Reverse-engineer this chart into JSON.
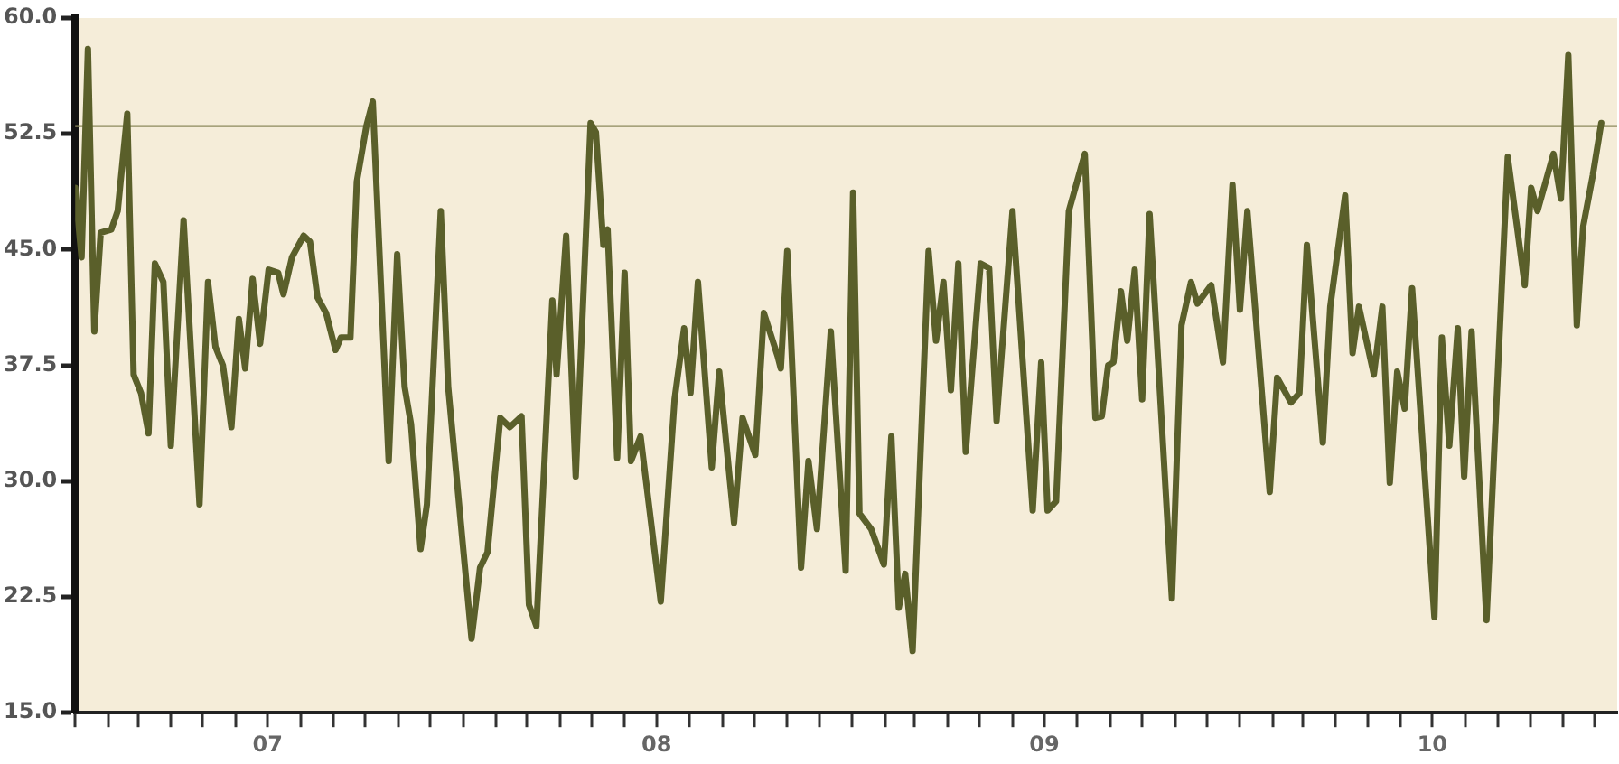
{
  "chart_data": {
    "type": "line",
    "series": [
      {
        "color": "#5a5f2a",
        "x": [
          "2007-01-01",
          "2007-01-07",
          "2007-01-13",
          "2007-01-19",
          "2007-01-25",
          "2007-02-04",
          "2007-02-10",
          "2007-02-19",
          "2007-02-25",
          "2007-03-04",
          "2007-03-11",
          "2007-03-17",
          "2007-03-25",
          "2007-04-01",
          "2007-04-13",
          "2007-04-28",
          "2007-05-06",
          "2007-05-13",
          "2007-05-20",
          "2007-05-28",
          "2007-06-04",
          "2007-06-10",
          "2007-06-17",
          "2007-06-24",
          "2007-07-02",
          "2007-07-11",
          "2007-07-16",
          "2007-07-24",
          "2007-08-04",
          "2007-08-10",
          "2007-08-17",
          "2007-08-25",
          "2007-09-03",
          "2007-09-08",
          "2007-09-17",
          "2007-09-23",
          "2007-10-02",
          "2007-10-08",
          "2007-10-23",
          "2007-10-31",
          "2007-11-07",
          "2007-11-13",
          "2007-11-22",
          "2007-11-28",
          "2007-12-11",
          "2007-12-18",
          "2008-01-09",
          "2008-01-17",
          "2008-01-24",
          "2008-02-05",
          "2008-02-14",
          "2008-02-25",
          "2008-03-03",
          "2008-03-10",
          "2008-03-25",
          "2008-03-29",
          "2008-04-07",
          "2008-04-16",
          "2008-04-30",
          "2008-05-05",
          "2008-05-12",
          "2008-05-16",
          "2008-05-25",
          "2008-06-01",
          "2008-06-07",
          "2008-06-16",
          "2008-07-05",
          "2008-07-18",
          "2008-07-27",
          "2008-08-02",
          "2008-08-09",
          "2008-08-22",
          "2008-08-29",
          "2008-09-12",
          "2008-09-20",
          "2008-10-02",
          "2008-10-10",
          "2008-10-23",
          "2008-10-26",
          "2008-11-01",
          "2008-11-14",
          "2008-11-21",
          "2008-11-29",
          "2008-12-12",
          "2008-12-26",
          "2009-01-02",
          "2009-01-08",
          "2009-01-19",
          "2009-01-31",
          "2009-02-07",
          "2009-02-14",
          "2009-02-20",
          "2009-02-27",
          "2009-03-14",
          "2009-03-21",
          "2009-03-28",
          "2009-04-04",
          "2009-04-11",
          "2009-04-18",
          "2009-05-02",
          "2009-05-10",
          "2009-05-17",
          "2009-06-01",
          "2009-06-20",
          "2009-06-28",
          "2009-07-04",
          "2009-07-12",
          "2009-07-24",
          "2009-08-08",
          "2009-08-18",
          "2009-08-24",
          "2009-08-30",
          "2009-09-04",
          "2009-09-11",
          "2009-09-17",
          "2009-09-24",
          "2009-10-01",
          "2009-10-08",
          "2009-10-29",
          "2009-11-07",
          "2009-11-16",
          "2009-11-22",
          "2009-12-05",
          "2009-12-16",
          "2009-12-25",
          "2010-01-01",
          "2010-01-08",
          "2010-01-29",
          "2010-02-05",
          "2010-02-18",
          "2010-02-26",
          "2010-03-05",
          "2010-03-20",
          "2010-03-27",
          "2010-04-10",
          "2010-04-17",
          "2010-04-23",
          "2010-05-07",
          "2010-05-15",
          "2010-05-22",
          "2010-05-29",
          "2010-06-05",
          "2010-06-12",
          "2010-07-03",
          "2010-07-10",
          "2010-07-17",
          "2010-07-25",
          "2010-07-31",
          "2010-08-07",
          "2010-08-21",
          "2010-09-10",
          "2010-09-26",
          "2010-10-02",
          "2010-10-08",
          "2010-10-23",
          "2010-10-30",
          "2010-11-06",
          "2010-11-14",
          "2010-11-20",
          "2010-11-29",
          "2010-12-07"
        ],
        "values": [
          49.0,
          44.5,
          58.0,
          39.7,
          46.1,
          46.3,
          47.5,
          53.8,
          36.9,
          35.7,
          33.1,
          44.1,
          42.9,
          32.3,
          46.9,
          28.5,
          42.9,
          38.7,
          37.5,
          33.5,
          40.5,
          37.3,
          43.1,
          38.9,
          43.7,
          43.5,
          42.1,
          44.5,
          45.9,
          45.5,
          41.9,
          40.9,
          38.5,
          39.3,
          39.3,
          49.4,
          53.0,
          54.6,
          31.3,
          44.7,
          36.1,
          33.7,
          25.6,
          28.5,
          47.5,
          36.1,
          19.8,
          24.4,
          25.4,
          34.1,
          33.5,
          34.2,
          22.0,
          20.6,
          41.7,
          36.9,
          45.9,
          30.3,
          53.2,
          52.6,
          45.3,
          46.3,
          31.5,
          43.5,
          31.3,
          32.9,
          22.2,
          35.3,
          39.9,
          35.7,
          42.9,
          30.9,
          37.1,
          27.3,
          34.1,
          31.7,
          40.9,
          38.1,
          37.3,
          44.9,
          24.4,
          31.3,
          26.9,
          39.7,
          24.2,
          48.7,
          27.9,
          26.9,
          24.6,
          32.9,
          21.8,
          24.0,
          19.0,
          44.9,
          39.1,
          42.9,
          35.9,
          44.1,
          31.9,
          44.1,
          43.8,
          33.9,
          47.5,
          28.1,
          37.7,
          28.1,
          28.7,
          47.5,
          51.2,
          34.1,
          34.2,
          37.5,
          37.7,
          42.3,
          39.1,
          43.7,
          35.3,
          47.3,
          22.4,
          40.1,
          42.9,
          41.5,
          42.7,
          37.7,
          49.2,
          41.1,
          47.5,
          29.3,
          36.7,
          35.1,
          35.7,
          45.3,
          32.5,
          41.3,
          48.5,
          38.3,
          41.3,
          36.9,
          41.3,
          29.9,
          37.1,
          34.7,
          42.5,
          21.2,
          39.3,
          32.3,
          39.9,
          30.3,
          39.7,
          21.0,
          51.0,
          42.7,
          49.0,
          47.5,
          51.2,
          48.3,
          57.6,
          40.1,
          46.5,
          49.8,
          53.2
        ]
      }
    ],
    "xlim": [
      "2007-01-01",
      "2010-12-22"
    ],
    "xticks": [
      {
        "value": "2007-01-01",
        "label": null
      },
      {
        "value": "2007-02-01",
        "label": null
      },
      {
        "value": "2007-03-01",
        "label": null
      },
      {
        "value": "2007-04-01",
        "label": null
      },
      {
        "value": "2007-05-01",
        "label": null
      },
      {
        "value": "2007-06-01",
        "label": null
      },
      {
        "value": "2007-07-01",
        "label": "07"
      },
      {
        "value": "2007-08-01",
        "label": null
      },
      {
        "value": "2007-09-01",
        "label": null
      },
      {
        "value": "2007-10-01",
        "label": null
      },
      {
        "value": "2007-11-01",
        "label": null
      },
      {
        "value": "2007-12-01",
        "label": null
      },
      {
        "value": "2008-01-01",
        "label": null
      },
      {
        "value": "2008-02-01",
        "label": null
      },
      {
        "value": "2008-03-01",
        "label": null
      },
      {
        "value": "2008-04-01",
        "label": null
      },
      {
        "value": "2008-05-01",
        "label": null
      },
      {
        "value": "2008-06-01",
        "label": null
      },
      {
        "value": "2008-07-01",
        "label": "08"
      },
      {
        "value": "2008-08-01",
        "label": null
      },
      {
        "value": "2008-09-01",
        "label": null
      },
      {
        "value": "2008-10-01",
        "label": null
      },
      {
        "value": "2008-11-01",
        "label": null
      },
      {
        "value": "2008-12-01",
        "label": null
      },
      {
        "value": "2009-01-01",
        "label": null
      },
      {
        "value": "2009-02-01",
        "label": null
      },
      {
        "value": "2009-03-01",
        "label": null
      },
      {
        "value": "2009-04-01",
        "label": null
      },
      {
        "value": "2009-05-01",
        "label": null
      },
      {
        "value": "2009-06-01",
        "label": null
      },
      {
        "value": "2009-07-01",
        "label": "09"
      },
      {
        "value": "2009-08-01",
        "label": null
      },
      {
        "value": "2009-09-01",
        "label": null
      },
      {
        "value": "2009-10-01",
        "label": null
      },
      {
        "value": "2009-11-01",
        "label": null
      },
      {
        "value": "2009-12-01",
        "label": null
      },
      {
        "value": "2010-01-01",
        "label": null
      },
      {
        "value": "2010-02-01",
        "label": null
      },
      {
        "value": "2010-03-01",
        "label": null
      },
      {
        "value": "2010-04-01",
        "label": null
      },
      {
        "value": "2010-05-01",
        "label": null
      },
      {
        "value": "2010-06-01",
        "label": null
      },
      {
        "value": "2010-07-01",
        "label": "10"
      },
      {
        "value": "2010-08-01",
        "label": null
      },
      {
        "value": "2010-09-01",
        "label": null
      },
      {
        "value": "2010-10-01",
        "label": null
      },
      {
        "value": "2010-11-01",
        "label": null
      },
      {
        "value": "2010-12-01",
        "label": null
      }
    ],
    "ylim": [
      15,
      60
    ],
    "yticks": [
      {
        "value": 15,
        "label": "15.0"
      },
      {
        "value": 22.5,
        "label": "22.5"
      },
      {
        "value": 30,
        "label": "30.0"
      },
      {
        "value": 37.5,
        "label": "37.5"
      },
      {
        "value": 45,
        "label": "45.0"
      },
      {
        "value": 52.5,
        "label": "52.5"
      },
      {
        "value": 60,
        "label": "60.0"
      }
    ],
    "ref_lines": [
      {
        "axis": "y",
        "value": 53,
        "color": "#8c8a5c"
      }
    ],
    "marker": "none"
  }
}
